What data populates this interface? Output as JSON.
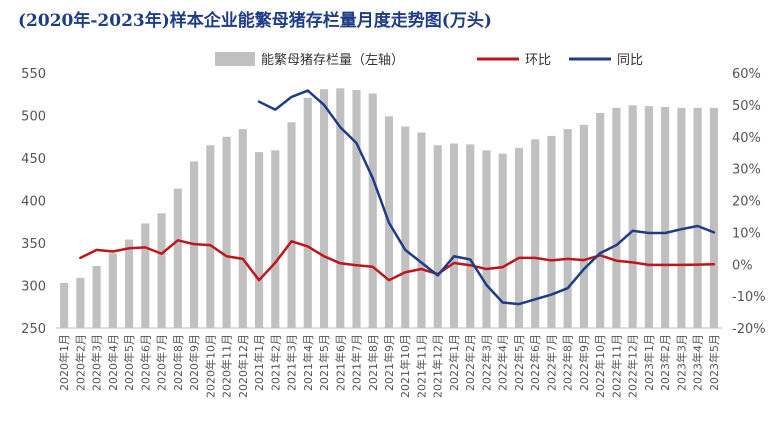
{
  "title": "(2020年-2023年)样本企业能繁母猪存栏量月度走势图(万头)",
  "chart_data": {
    "type": "bar+line",
    "title": "(2020年-2023年)样本企业能繁母猪存栏量月度走势图(万头)",
    "categories": [
      "2020年1月",
      "2020年2月",
      "2020年3月",
      "2020年4月",
      "2020年5月",
      "2020年6月",
      "2020年7月",
      "2020年8月",
      "2020年9月",
      "2020年10月",
      "2020年11月",
      "2020年12月",
      "2021年1月",
      "2021年2月",
      "2021年3月",
      "2021年4月",
      "2021年5月",
      "2021年6月",
      "2021年7月",
      "2021年8月",
      "2021年9月",
      "2021年10月",
      "2021年11月",
      "2021年12月",
      "2022年1月",
      "2022年2月",
      "2022年3月",
      "2022年4月",
      "2022年5月",
      "2022年6月",
      "2022年7月",
      "2022年8月",
      "2022年9月",
      "2022年10月",
      "2022年11月",
      "2022年12月",
      "2023年1月",
      "2023年2月",
      "2023年3月",
      "2023年4月",
      "2023年5月"
    ],
    "y_left": {
      "ylim": [
        250,
        550
      ],
      "ticks": [
        "250",
        "300",
        "350",
        "400",
        "450",
        "500",
        "550"
      ]
    },
    "y_right": {
      "ylim": [
        -20,
        60
      ],
      "ticks": [
        "-20%",
        "-10%",
        "0%",
        "10%",
        "20%",
        "30%",
        "40%",
        "50%",
        "60%"
      ]
    },
    "legend": {
      "position": "top"
    },
    "series": [
      {
        "name": "能繁母猪存栏量（左轴）",
        "type": "bar",
        "axis": "left",
        "color": "#c0c0c0",
        "values": [
          303,
          309,
          323,
          338,
          354,
          373,
          385,
          414,
          446,
          465,
          475,
          484,
          457,
          459,
          492,
          521,
          531,
          532,
          530,
          526,
          499,
          487,
          480,
          465,
          467,
          466,
          459,
          455,
          462,
          472,
          476,
          484,
          489,
          503,
          509,
          512,
          511,
          510,
          509,
          509,
          509
        ]
      },
      {
        "name": "环比",
        "type": "line",
        "axis": "right",
        "color": "#c0151b",
        "values": [
          null,
          2.0,
          4.5,
          4.0,
          5.0,
          5.3,
          3.3,
          7.5,
          6.3,
          6.0,
          2.5,
          1.7,
          -5.0,
          0.5,
          7.2,
          5.6,
          2.5,
          0.3,
          -0.3,
          -0.8,
          -5.0,
          -2.5,
          -1.5,
          -3.1,
          0.4,
          -0.3,
          -1.5,
          -0.9,
          2.0,
          2.0,
          1.2,
          1.7,
          1.3,
          2.8,
          1.1,
          0.6,
          -0.2,
          -0.2,
          -0.2,
          -0.1,
          0.0
        ]
      },
      {
        "name": "同比",
        "type": "line",
        "axis": "right",
        "color": "#1f3c88",
        "values": [
          null,
          null,
          null,
          null,
          null,
          null,
          null,
          null,
          null,
          null,
          null,
          null,
          51.0,
          48.5,
          52.5,
          54.5,
          50.0,
          43.0,
          38.0,
          27.0,
          13.0,
          4.5,
          0.5,
          -3.5,
          2.5,
          1.5,
          -6.5,
          -12.0,
          -12.5,
          -11.0,
          -9.5,
          -7.5,
          -1.5,
          3.5,
          6.0,
          10.5,
          9.8,
          9.8,
          11.0,
          12.0,
          10.0
        ]
      }
    ]
  },
  "colors": {
    "title": "#1f3c88",
    "bar": "#c0c0c0",
    "mom": "#c0151b",
    "yoy": "#1f3c88"
  }
}
